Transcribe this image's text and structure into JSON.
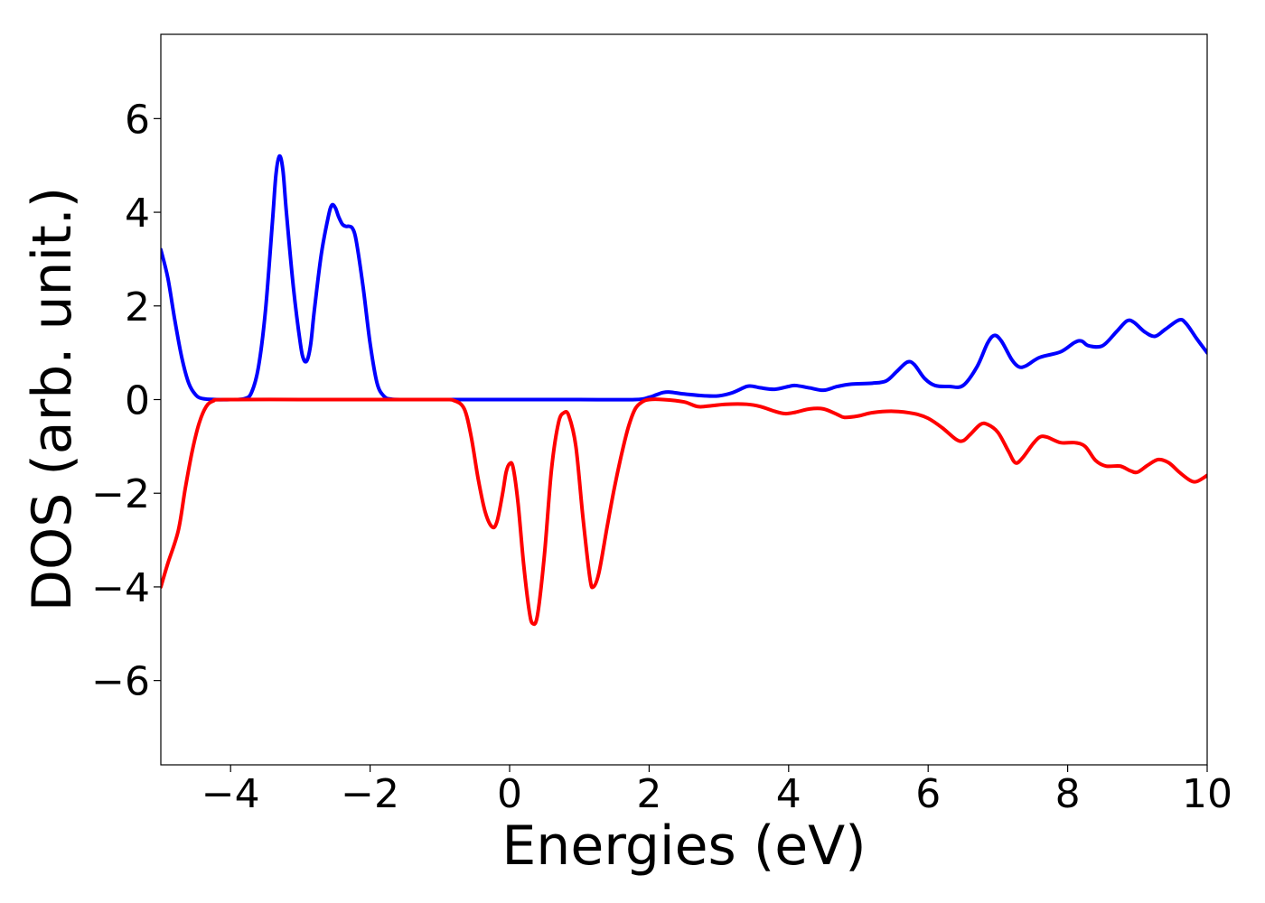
{
  "chart_data": {
    "type": "line",
    "title": "",
    "xlabel": "Energies (eV)",
    "ylabel": "DOS (arb. unit.)",
    "xlim": [
      -5,
      10
    ],
    "ylim": [
      -7.8,
      7.8
    ],
    "xticks": [
      -4,
      -2,
      0,
      2,
      4,
      6,
      8,
      10
    ],
    "xtick_labels": [
      "−4",
      "−2",
      "0",
      "2",
      "4",
      "6",
      "8",
      "10"
    ],
    "yticks": [
      -6,
      -4,
      -2,
      0,
      2,
      4,
      6
    ],
    "ytick_labels": [
      "−6",
      "−4",
      "−2",
      "0",
      "2",
      "4",
      "6"
    ],
    "grid": false,
    "legend": "none",
    "series": [
      {
        "color": "#0000ff",
        "points": [
          [
            -5.0,
            3.2
          ],
          [
            -4.9,
            2.6
          ],
          [
            -4.8,
            1.7
          ],
          [
            -4.7,
            0.9
          ],
          [
            -4.6,
            0.35
          ],
          [
            -4.5,
            0.1
          ],
          [
            -4.4,
            0.02
          ],
          [
            -4.2,
            0.0
          ],
          [
            -4.0,
            0.0
          ],
          [
            -3.8,
            0.02
          ],
          [
            -3.7,
            0.15
          ],
          [
            -3.6,
            0.7
          ],
          [
            -3.5,
            1.9
          ],
          [
            -3.4,
            3.8
          ],
          [
            -3.35,
            4.8
          ],
          [
            -3.3,
            5.2
          ],
          [
            -3.25,
            4.9
          ],
          [
            -3.2,
            4.0
          ],
          [
            -3.1,
            2.4
          ],
          [
            -3.0,
            1.2
          ],
          [
            -2.95,
            0.85
          ],
          [
            -2.9,
            0.85
          ],
          [
            -2.85,
            1.2
          ],
          [
            -2.8,
            1.9
          ],
          [
            -2.7,
            3.1
          ],
          [
            -2.6,
            3.9
          ],
          [
            -2.55,
            4.15
          ],
          [
            -2.5,
            4.1
          ],
          [
            -2.45,
            3.9
          ],
          [
            -2.4,
            3.75
          ],
          [
            -2.35,
            3.7
          ],
          [
            -2.3,
            3.7
          ],
          [
            -2.25,
            3.65
          ],
          [
            -2.2,
            3.4
          ],
          [
            -2.1,
            2.4
          ],
          [
            -2.0,
            1.2
          ],
          [
            -1.9,
            0.35
          ],
          [
            -1.8,
            0.07
          ],
          [
            -1.7,
            0.01
          ],
          [
            -1.5,
            0.0
          ],
          [
            -1.0,
            0.0
          ],
          [
            0.0,
            0.0
          ],
          [
            1.0,
            0.0
          ],
          [
            1.8,
            0.0
          ],
          [
            2.0,
            0.05
          ],
          [
            2.1,
            0.1
          ],
          [
            2.2,
            0.15
          ],
          [
            2.3,
            0.16
          ],
          [
            2.5,
            0.12
          ],
          [
            2.8,
            0.08
          ],
          [
            3.0,
            0.08
          ],
          [
            3.2,
            0.15
          ],
          [
            3.4,
            0.28
          ],
          [
            3.5,
            0.28
          ],
          [
            3.6,
            0.25
          ],
          [
            3.8,
            0.22
          ],
          [
            4.0,
            0.28
          ],
          [
            4.1,
            0.3
          ],
          [
            4.3,
            0.25
          ],
          [
            4.5,
            0.2
          ],
          [
            4.7,
            0.28
          ],
          [
            4.9,
            0.33
          ],
          [
            5.2,
            0.35
          ],
          [
            5.4,
            0.4
          ],
          [
            5.55,
            0.6
          ],
          [
            5.7,
            0.8
          ],
          [
            5.8,
            0.75
          ],
          [
            5.95,
            0.45
          ],
          [
            6.1,
            0.3
          ],
          [
            6.3,
            0.28
          ],
          [
            6.5,
            0.3
          ],
          [
            6.7,
            0.7
          ],
          [
            6.85,
            1.2
          ],
          [
            6.95,
            1.37
          ],
          [
            7.05,
            1.25
          ],
          [
            7.2,
            0.85
          ],
          [
            7.3,
            0.7
          ],
          [
            7.4,
            0.72
          ],
          [
            7.6,
            0.9
          ],
          [
            7.9,
            1.02
          ],
          [
            8.1,
            1.22
          ],
          [
            8.2,
            1.25
          ],
          [
            8.3,
            1.15
          ],
          [
            8.5,
            1.15
          ],
          [
            8.7,
            1.45
          ],
          [
            8.85,
            1.68
          ],
          [
            8.95,
            1.65
          ],
          [
            9.1,
            1.45
          ],
          [
            9.25,
            1.35
          ],
          [
            9.4,
            1.5
          ],
          [
            9.6,
            1.7
          ],
          [
            9.7,
            1.62
          ],
          [
            9.85,
            1.3
          ],
          [
            10.0,
            1.0
          ]
        ]
      },
      {
        "color": "#ff0000",
        "points": [
          [
            -5.0,
            -4.0
          ],
          [
            -4.9,
            -3.5
          ],
          [
            -4.75,
            -2.8
          ],
          [
            -4.65,
            -1.9
          ],
          [
            -4.55,
            -1.1
          ],
          [
            -4.45,
            -0.5
          ],
          [
            -4.35,
            -0.15
          ],
          [
            -4.25,
            -0.03
          ],
          [
            -4.1,
            0.0
          ],
          [
            -3.0,
            0.0
          ],
          [
            -2.0,
            0.0
          ],
          [
            -1.0,
            0.0
          ],
          [
            -0.8,
            -0.02
          ],
          [
            -0.65,
            -0.2
          ],
          [
            -0.55,
            -0.8
          ],
          [
            -0.45,
            -1.7
          ],
          [
            -0.35,
            -2.4
          ],
          [
            -0.25,
            -2.72
          ],
          [
            -0.18,
            -2.6
          ],
          [
            -0.1,
            -2.0
          ],
          [
            -0.05,
            -1.55
          ],
          [
            0.0,
            -1.37
          ],
          [
            0.05,
            -1.45
          ],
          [
            0.12,
            -2.2
          ],
          [
            0.2,
            -3.5
          ],
          [
            0.28,
            -4.5
          ],
          [
            0.33,
            -4.78
          ],
          [
            0.4,
            -4.6
          ],
          [
            0.5,
            -3.3
          ],
          [
            0.6,
            -1.5
          ],
          [
            0.7,
            -0.5
          ],
          [
            0.78,
            -0.28
          ],
          [
            0.85,
            -0.35
          ],
          [
            0.95,
            -1.0
          ],
          [
            1.05,
            -2.5
          ],
          [
            1.15,
            -3.8
          ],
          [
            1.2,
            -4.0
          ],
          [
            1.28,
            -3.7
          ],
          [
            1.4,
            -2.7
          ],
          [
            1.5,
            -1.9
          ],
          [
            1.6,
            -1.2
          ],
          [
            1.7,
            -0.6
          ],
          [
            1.8,
            -0.2
          ],
          [
            1.9,
            -0.05
          ],
          [
            2.0,
            0.0
          ],
          [
            2.2,
            0.0
          ],
          [
            2.5,
            -0.05
          ],
          [
            2.7,
            -0.15
          ],
          [
            2.9,
            -0.13
          ],
          [
            3.1,
            -0.1
          ],
          [
            3.4,
            -0.1
          ],
          [
            3.6,
            -0.15
          ],
          [
            3.8,
            -0.25
          ],
          [
            3.95,
            -0.3
          ],
          [
            4.1,
            -0.27
          ],
          [
            4.3,
            -0.2
          ],
          [
            4.5,
            -0.2
          ],
          [
            4.7,
            -0.32
          ],
          [
            4.8,
            -0.38
          ],
          [
            5.0,
            -0.35
          ],
          [
            5.2,
            -0.28
          ],
          [
            5.5,
            -0.25
          ],
          [
            5.8,
            -0.3
          ],
          [
            6.0,
            -0.4
          ],
          [
            6.2,
            -0.6
          ],
          [
            6.4,
            -0.85
          ],
          [
            6.5,
            -0.88
          ],
          [
            6.6,
            -0.75
          ],
          [
            6.75,
            -0.53
          ],
          [
            6.85,
            -0.53
          ],
          [
            7.0,
            -0.7
          ],
          [
            7.15,
            -1.1
          ],
          [
            7.25,
            -1.35
          ],
          [
            7.35,
            -1.25
          ],
          [
            7.5,
            -0.95
          ],
          [
            7.6,
            -0.8
          ],
          [
            7.7,
            -0.8
          ],
          [
            7.9,
            -0.92
          ],
          [
            8.1,
            -0.92
          ],
          [
            8.25,
            -1.0
          ],
          [
            8.4,
            -1.3
          ],
          [
            8.55,
            -1.42
          ],
          [
            8.75,
            -1.42
          ],
          [
            8.9,
            -1.52
          ],
          [
            9.0,
            -1.55
          ],
          [
            9.15,
            -1.4
          ],
          [
            9.3,
            -1.28
          ],
          [
            9.45,
            -1.35
          ],
          [
            9.6,
            -1.55
          ],
          [
            9.75,
            -1.72
          ],
          [
            9.85,
            -1.75
          ],
          [
            10.0,
            -1.62
          ]
        ]
      }
    ]
  }
}
